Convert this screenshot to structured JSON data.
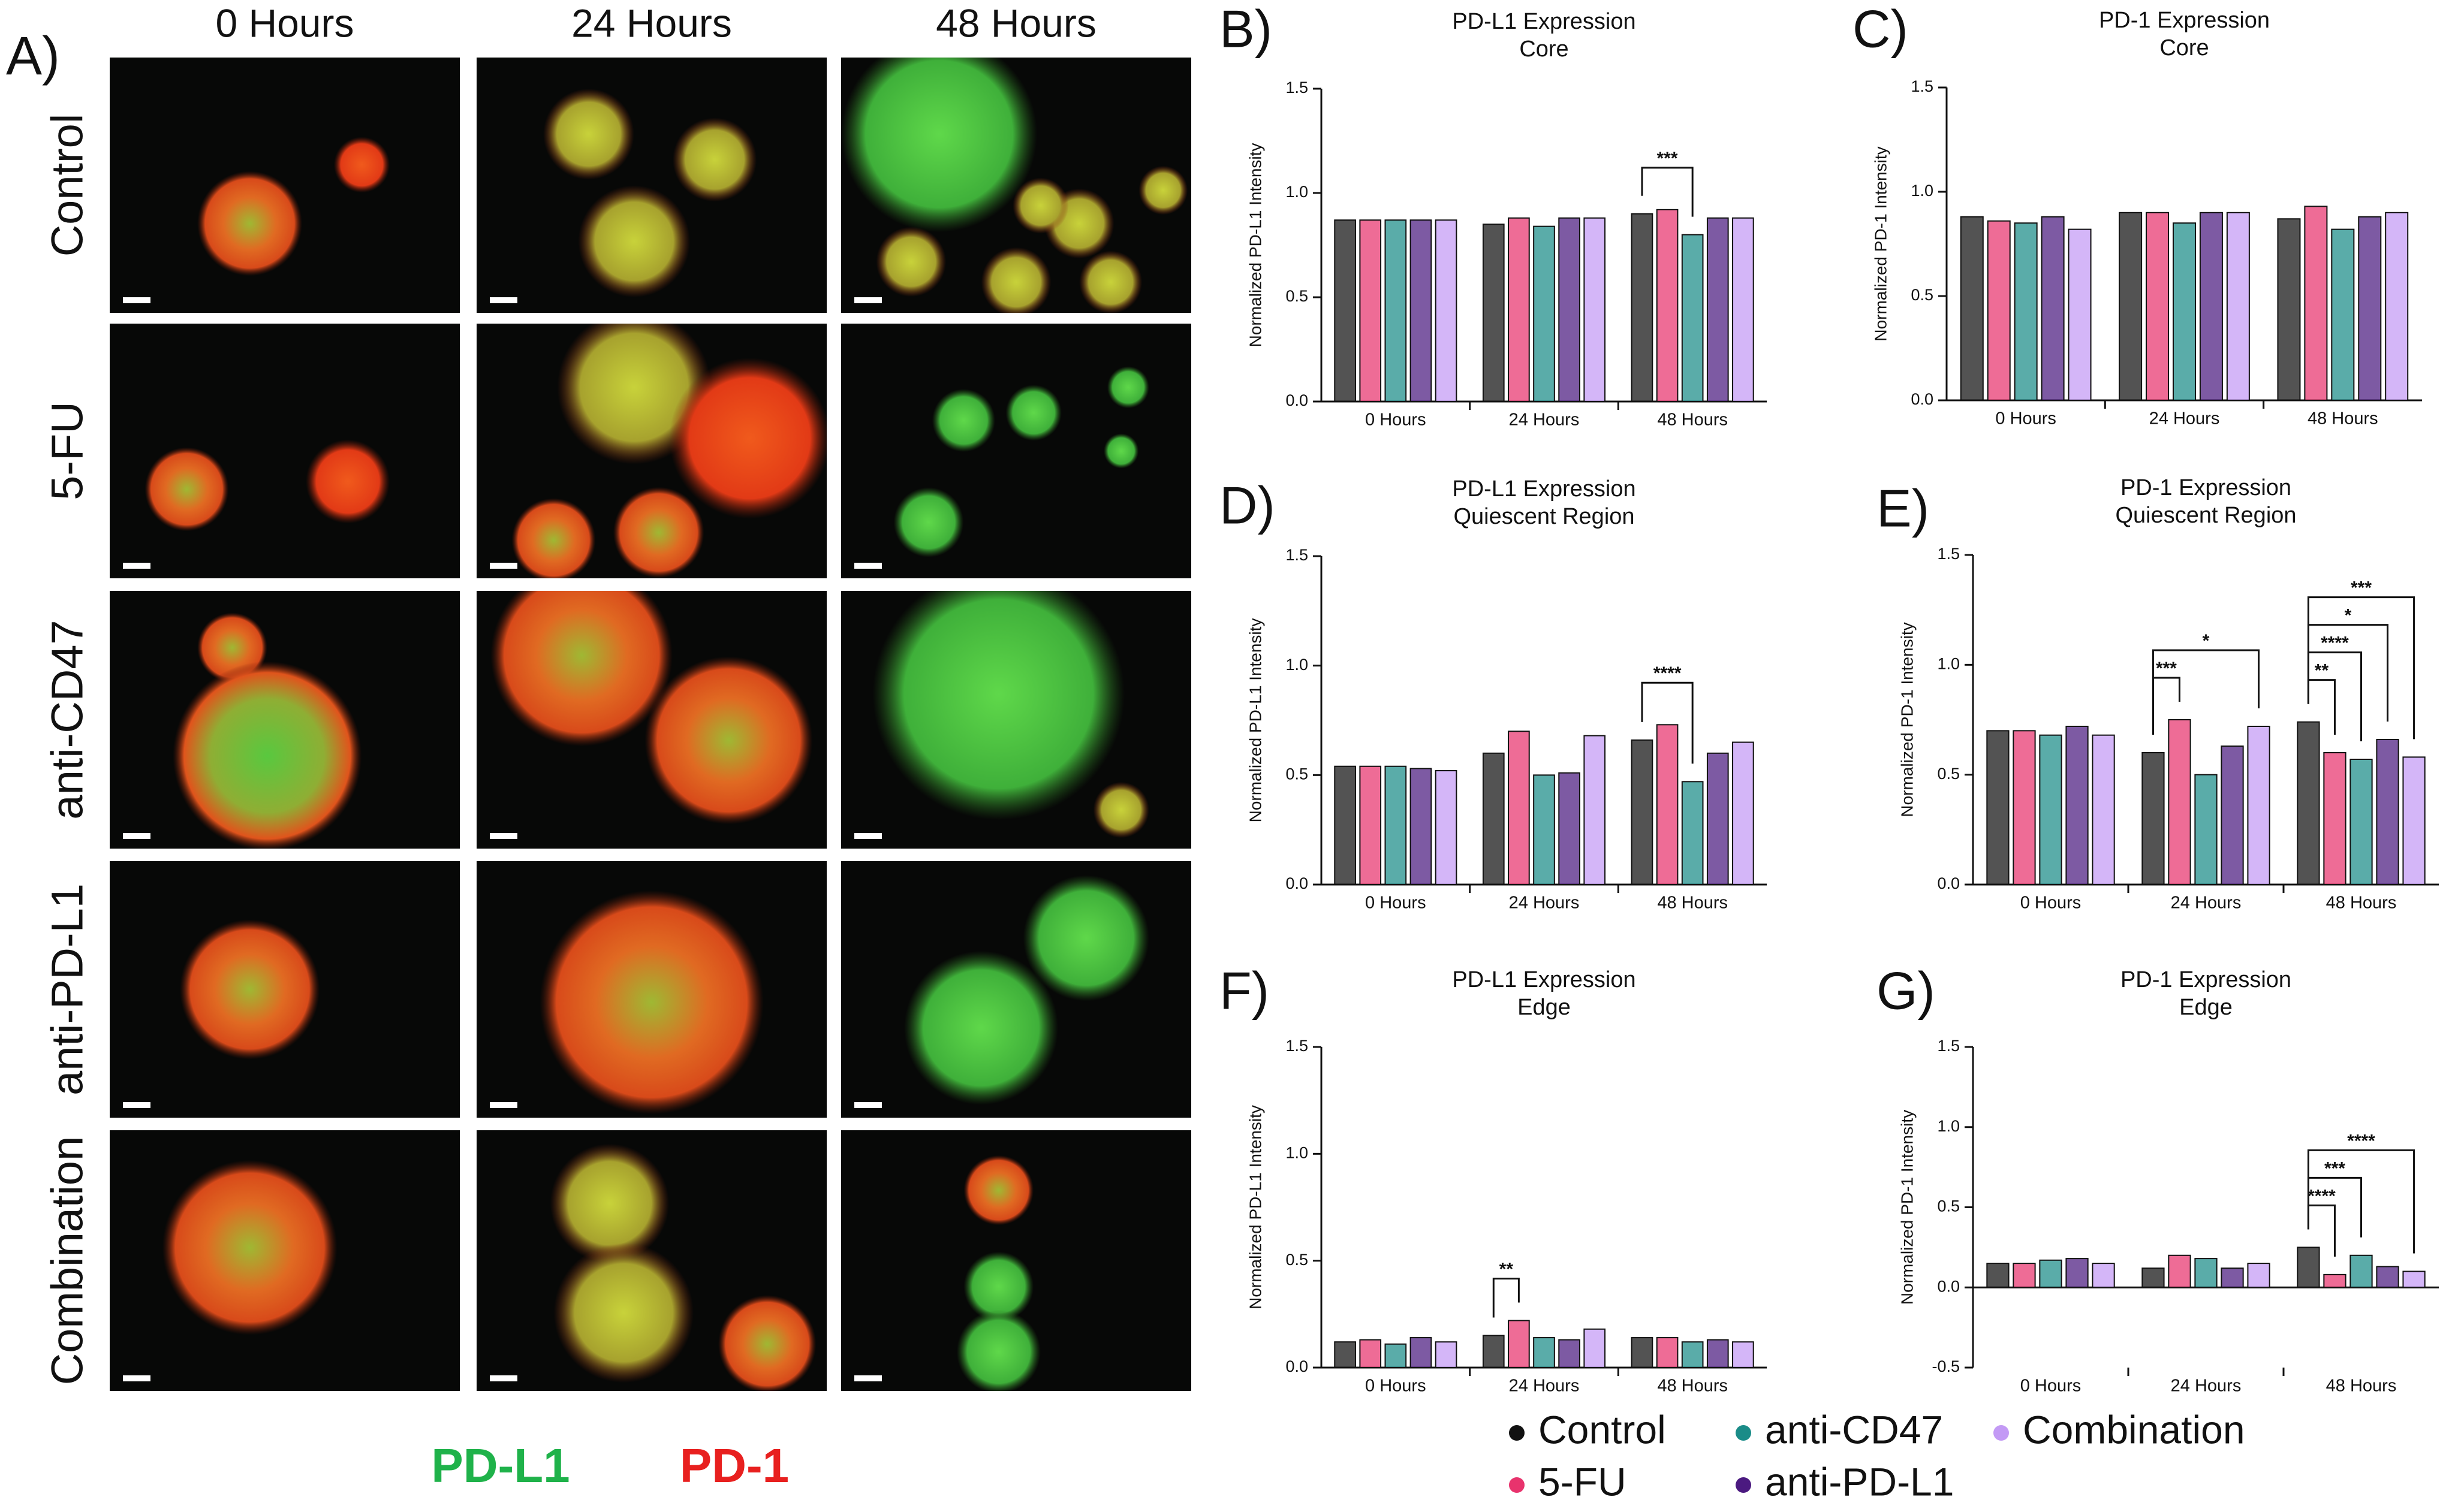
{
  "panel_a": {
    "label": "A)",
    "columns": [
      "0 Hours",
      "24 Hours",
      "48 Hours"
    ],
    "rows": [
      "Control",
      "5-FU",
      "anti-CD47",
      "anti-PD-L1",
      "Combination"
    ],
    "stains": [
      {
        "name": "PD-L1",
        "color": "#1fb24a"
      },
      {
        "name": "PD-1",
        "color": "#e8201f"
      }
    ]
  },
  "legend": [
    {
      "name": "Control",
      "color": "#111111"
    },
    {
      "name": "5-FU",
      "color": "#e8336d"
    },
    {
      "name": "anti-CD47",
      "color": "#1a8c88"
    },
    {
      "name": "anti-PD-L1",
      "color": "#4b1a80"
    },
    {
      "name": "Combination",
      "color": "#c39af5"
    }
  ],
  "chart_data": [
    {
      "type": "bar",
      "panel": "B)",
      "title": "PD-L1 Expression",
      "subtitle": "Core",
      "y_label": "Normalized PD-L1 Intensity",
      "categories": [
        "0 Hours",
        "24 Hours",
        "48 Hours"
      ],
      "ylim": [
        0,
        1.5
      ],
      "yticks": [
        {
          "value": 0,
          "label": "0.0"
        },
        0.5,
        {
          "value": 1,
          "label": "1.0"
        },
        1.5
      ],
      "series": [
        {
          "values": [
            0.87,
            0.85,
            0.9
          ]
        },
        {
          "values": [
            0.87,
            0.88,
            0.92
          ]
        },
        {
          "values": [
            0.87,
            0.84,
            0.8
          ]
        },
        {
          "values": [
            0.87,
            0.88,
            0.88
          ]
        },
        {
          "values": [
            0.87,
            0.88,
            0.88
          ]
        }
      ],
      "annotations": [
        {
          "group": 2,
          "between": [
            0,
            2
          ],
          "text": "***"
        }
      ]
    },
    {
      "type": "bar",
      "panel": "C)",
      "title": "PD-1 Expression",
      "subtitle": "Core",
      "y_label": "Normalized PD-1 Intensity",
      "categories": [
        "0 Hours",
        "24 Hours",
        "48 Hours"
      ],
      "ylim": [
        0,
        1.5
      ],
      "yticks": [
        {
          "value": 0,
          "label": "0.0"
        },
        0.5,
        {
          "value": 1,
          "label": "1.0"
        },
        1.5
      ],
      "series": [
        {
          "values": [
            0.88,
            0.9,
            0.87
          ]
        },
        {
          "values": [
            0.86,
            0.9,
            0.93
          ]
        },
        {
          "values": [
            0.85,
            0.85,
            0.82
          ]
        },
        {
          "values": [
            0.88,
            0.9,
            0.88
          ]
        },
        {
          "values": [
            0.82,
            0.9,
            0.9
          ]
        }
      ],
      "annotations": []
    },
    {
      "type": "bar",
      "panel": "D)",
      "title": "PD-L1 Expression",
      "subtitle": "Quiescent Region",
      "y_label": "Normalized PD-L1 Intensity",
      "categories": [
        "0 Hours",
        "24 Hours",
        "48 Hours"
      ],
      "ylim": [
        0,
        1.5
      ],
      "yticks": [
        {
          "value": 0,
          "label": "0.0"
        },
        0.5,
        {
          "value": 1,
          "label": "1.0"
        },
        1.5
      ],
      "series": [
        {
          "values": [
            0.54,
            0.6,
            0.66
          ]
        },
        {
          "values": [
            0.54,
            0.7,
            0.73
          ]
        },
        {
          "values": [
            0.54,
            0.5,
            0.47
          ]
        },
        {
          "values": [
            0.53,
            0.51,
            0.6
          ]
        },
        {
          "values": [
            0.52,
            0.68,
            0.65
          ]
        }
      ],
      "annotations": [
        {
          "group": 2,
          "between": [
            0,
            2
          ],
          "text": "****"
        }
      ]
    },
    {
      "type": "bar",
      "panel": "E)",
      "title": "PD-1 Expression",
      "subtitle": "Quiescent Region",
      "y_label": "Normalized PD-1 Intensity",
      "categories": [
        "0 Hours",
        "24 Hours",
        "48 Hours"
      ],
      "ylim": [
        0,
        1.5
      ],
      "yticks": [
        {
          "value": 0,
          "label": "0.0"
        },
        0.5,
        {
          "value": 1,
          "label": "1.0"
        },
        1.5
      ],
      "series": [
        {
          "values": [
            0.7,
            0.6,
            0.74
          ]
        },
        {
          "values": [
            0.7,
            0.75,
            0.6
          ]
        },
        {
          "values": [
            0.68,
            0.5,
            0.57
          ]
        },
        {
          "values": [
            0.72,
            0.63,
            0.66
          ]
        },
        {
          "values": [
            0.68,
            0.72,
            0.58
          ]
        }
      ],
      "annotations": [
        {
          "group": 1,
          "between": [
            0,
            1
          ],
          "text": "***"
        },
        {
          "group": 1,
          "between": [
            0,
            4
          ],
          "text": "*"
        },
        {
          "group": 2,
          "between": [
            0,
            1
          ],
          "text": "**"
        },
        {
          "group": 2,
          "between": [
            0,
            2
          ],
          "text": "****"
        },
        {
          "group": 2,
          "between": [
            0,
            3
          ],
          "text": "*"
        },
        {
          "group": 2,
          "between": [
            0,
            4
          ],
          "text": "***"
        }
      ]
    },
    {
      "type": "bar",
      "panel": "F)",
      "title": "PD-L1 Expression",
      "subtitle": "Edge",
      "y_label": "Normalized PD-L1 Intensity",
      "categories": [
        "0 Hours",
        "24 Hours",
        "48 Hours"
      ],
      "ylim": [
        0,
        1.5
      ],
      "yticks": [
        {
          "value": 0,
          "label": "0.0"
        },
        0.5,
        {
          "value": 1,
          "label": "1.0"
        },
        1.5
      ],
      "series": [
        {
          "values": [
            0.12,
            0.15,
            0.14
          ]
        },
        {
          "values": [
            0.13,
            0.22,
            0.14
          ]
        },
        {
          "values": [
            0.11,
            0.14,
            0.12
          ]
        },
        {
          "values": [
            0.14,
            0.13,
            0.13
          ]
        },
        {
          "values": [
            0.12,
            0.18,
            0.12
          ]
        }
      ],
      "annotations": [
        {
          "group": 1,
          "between": [
            0,
            1
          ],
          "text": "**"
        }
      ]
    },
    {
      "type": "bar",
      "panel": "G)",
      "title": "PD-1 Expression",
      "subtitle": "Edge",
      "y_label": "Normalized PD-1 Intensity",
      "categories": [
        "0 Hours",
        "24 Hours",
        "48 Hours"
      ],
      "ylim": [
        -0.5,
        1.5
      ],
      "yticks": [
        -0.5,
        {
          "value": 0,
          "label": "0.0"
        },
        0.5,
        {
          "value": 1,
          "label": "1.0"
        },
        1.5
      ],
      "series": [
        {
          "values": [
            0.15,
            0.12,
            0.25
          ]
        },
        {
          "values": [
            0.15,
            0.2,
            0.08
          ]
        },
        {
          "values": [
            0.17,
            0.18,
            0.2
          ]
        },
        {
          "values": [
            0.18,
            0.12,
            0.13
          ]
        },
        {
          "values": [
            0.15,
            0.15,
            0.1
          ]
        }
      ],
      "annotations": [
        {
          "group": 2,
          "between": [
            0,
            1
          ],
          "text": "****"
        },
        {
          "group": 2,
          "between": [
            0,
            2
          ],
          "text": "***"
        },
        {
          "group": 2,
          "between": [
            0,
            4
          ],
          "text": "****"
        }
      ]
    }
  ]
}
